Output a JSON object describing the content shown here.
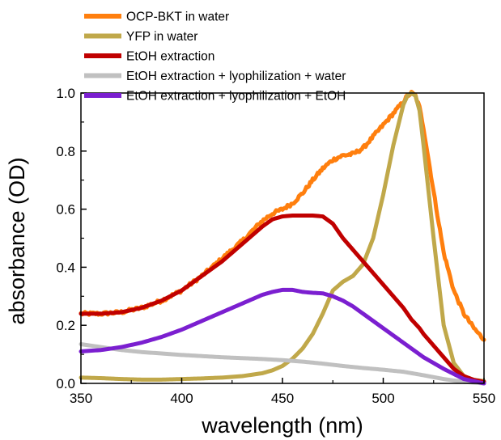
{
  "chart_data": {
    "type": "line",
    "title": "",
    "xlabel": "wavelength (nm)",
    "ylabel": "absorbance (OD)",
    "xlim": [
      350,
      550
    ],
    "ylim": [
      0.0,
      1.0
    ],
    "xticks": [
      350,
      400,
      450,
      500,
      550
    ],
    "yticks": [
      0.0,
      0.2,
      0.4,
      0.6,
      0.8,
      1.0
    ],
    "xtick_labels": [
      "350",
      "400",
      "450",
      "500",
      "550"
    ],
    "ytick_labels": [
      "0.0",
      "0.2",
      "0.4",
      "0.6",
      "0.8",
      "1.0"
    ],
    "grid": false,
    "legend_position": "top-left",
    "series": [
      {
        "name": "OCP-BKT in water",
        "color": "#ff7f0e",
        "noise": 0.006,
        "x": [
          350,
          360,
          370,
          380,
          390,
          400,
          410,
          420,
          430,
          440,
          445,
          450,
          455,
          460,
          465,
          470,
          475,
          480,
          485,
          490,
          495,
          500,
          505,
          510,
          512,
          514,
          516,
          518,
          520,
          525,
          530,
          535,
          540,
          545,
          550
        ],
        "y": [
          0.24,
          0.24,
          0.245,
          0.26,
          0.285,
          0.32,
          0.37,
          0.43,
          0.49,
          0.56,
          0.585,
          0.6,
          0.62,
          0.655,
          0.7,
          0.74,
          0.77,
          0.785,
          0.79,
          0.81,
          0.85,
          0.89,
          0.93,
          0.97,
          0.99,
          1.0,
          0.99,
          0.95,
          0.88,
          0.66,
          0.45,
          0.32,
          0.24,
          0.19,
          0.15
        ]
      },
      {
        "name": "YFP in water",
        "color": "#c0a84a",
        "noise": 0.0,
        "x": [
          350,
          360,
          370,
          380,
          390,
          400,
          410,
          420,
          430,
          440,
          445,
          450,
          455,
          460,
          465,
          470,
          475,
          480,
          485,
          490,
          495,
          500,
          505,
          510,
          512,
          514,
          516,
          518,
          520,
          525,
          530,
          535,
          540,
          545,
          550
        ],
        "y": [
          0.02,
          0.018,
          0.015,
          0.013,
          0.013,
          0.015,
          0.017,
          0.02,
          0.025,
          0.035,
          0.045,
          0.06,
          0.085,
          0.12,
          0.17,
          0.24,
          0.32,
          0.35,
          0.37,
          0.41,
          0.5,
          0.65,
          0.82,
          0.96,
          0.99,
          1.0,
          0.99,
          0.94,
          0.82,
          0.5,
          0.2,
          0.07,
          0.025,
          0.012,
          0.008
        ]
      },
      {
        "name": "EtOH extraction",
        "color": "#c00000",
        "noise": 0.0,
        "x": [
          350,
          360,
          370,
          380,
          390,
          400,
          410,
          420,
          430,
          440,
          445,
          450,
          455,
          460,
          465,
          470,
          475,
          480,
          485,
          490,
          495,
          500,
          505,
          510,
          512,
          514,
          516,
          518,
          520,
          525,
          530,
          535,
          540,
          545,
          550
        ],
        "y": [
          0.24,
          0.24,
          0.245,
          0.26,
          0.285,
          0.32,
          0.37,
          0.42,
          0.48,
          0.54,
          0.565,
          0.575,
          0.578,
          0.578,
          0.578,
          0.575,
          0.55,
          0.5,
          0.46,
          0.42,
          0.38,
          0.34,
          0.3,
          0.26,
          0.24,
          0.22,
          0.205,
          0.19,
          0.17,
          0.13,
          0.09,
          0.05,
          0.025,
          0.012,
          0.005
        ]
      },
      {
        "name": "EtOH extraction + lyophilization + water",
        "color": "#c0c0c0",
        "noise": 0.0,
        "x": [
          350,
          360,
          370,
          380,
          390,
          400,
          410,
          420,
          430,
          440,
          450,
          460,
          470,
          480,
          490,
          500,
          510,
          520,
          530,
          540,
          550
        ],
        "y": [
          0.135,
          0.125,
          0.115,
          0.108,
          0.103,
          0.098,
          0.094,
          0.09,
          0.087,
          0.084,
          0.08,
          0.075,
          0.068,
          0.06,
          0.053,
          0.047,
          0.04,
          0.028,
          0.015,
          0.005,
          0.0
        ]
      },
      {
        "name": "EtOH extraction + lyophilization + EtOH",
        "color": "#7b1fd0",
        "noise": 0.0,
        "x": [
          350,
          360,
          370,
          380,
          390,
          400,
          410,
          420,
          430,
          440,
          445,
          450,
          455,
          460,
          465,
          470,
          475,
          480,
          485,
          490,
          495,
          500,
          510,
          520,
          530,
          540,
          550
        ],
        "y": [
          0.11,
          0.115,
          0.125,
          0.14,
          0.16,
          0.185,
          0.215,
          0.245,
          0.275,
          0.305,
          0.315,
          0.322,
          0.322,
          0.315,
          0.312,
          0.31,
          0.3,
          0.285,
          0.265,
          0.24,
          0.215,
          0.19,
          0.14,
          0.09,
          0.05,
          0.015,
          0.0
        ]
      }
    ]
  }
}
